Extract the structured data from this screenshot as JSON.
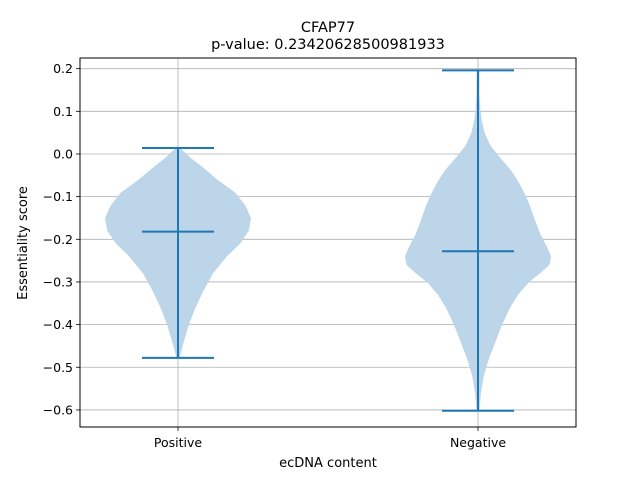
{
  "chart_data": {
    "type": "violin",
    "title": "CFAP77",
    "subtitle": "p-value: 0.23420628500981933",
    "xlabel": "ecDNA content",
    "ylabel": "Essentiality score",
    "ylim": [
      -0.64,
      0.225
    ],
    "yticks": [
      -0.6,
      -0.5,
      -0.4,
      -0.3,
      -0.2,
      -0.1,
      0.0,
      0.1,
      0.2
    ],
    "ytick_labels": [
      "−0.6",
      "−0.5",
      "−0.4",
      "−0.3",
      "−0.2",
      "−0.1",
      "0.0",
      "0.1",
      "0.2"
    ],
    "grid": true,
    "categories": [
      "Positive",
      "Negative"
    ],
    "violins": [
      {
        "category": "Positive",
        "min": -0.478,
        "median": -0.182,
        "max": 0.014,
        "density": [
          [
            0.014,
            0.03
          ],
          [
            -0.01,
            0.18
          ],
          [
            -0.03,
            0.33
          ],
          [
            -0.06,
            0.54
          ],
          [
            -0.09,
            0.78
          ],
          [
            -0.12,
            0.92
          ],
          [
            -0.15,
            1.0
          ],
          [
            -0.18,
            0.97
          ],
          [
            -0.21,
            0.85
          ],
          [
            -0.24,
            0.67
          ],
          [
            -0.28,
            0.48
          ],
          [
            -0.32,
            0.35
          ],
          [
            -0.36,
            0.24
          ],
          [
            -0.4,
            0.15
          ],
          [
            -0.44,
            0.08
          ],
          [
            -0.478,
            0.02
          ]
        ]
      },
      {
        "category": "Negative",
        "min": -0.602,
        "median": -0.228,
        "max": 0.196,
        "density": [
          [
            0.196,
            0.02
          ],
          [
            0.17,
            0.02
          ],
          [
            0.14,
            0.02
          ],
          [
            0.11,
            0.03
          ],
          [
            0.08,
            0.05
          ],
          [
            0.05,
            0.09
          ],
          [
            0.02,
            0.17
          ],
          [
            -0.01,
            0.31
          ],
          [
            -0.04,
            0.46
          ],
          [
            -0.07,
            0.57
          ],
          [
            -0.1,
            0.66
          ],
          [
            -0.13,
            0.73
          ],
          [
            -0.16,
            0.79
          ],
          [
            -0.19,
            0.86
          ],
          [
            -0.22,
            0.95
          ],
          [
            -0.24,
            1.0
          ],
          [
            -0.26,
            0.98
          ],
          [
            -0.28,
            0.85
          ],
          [
            -0.3,
            0.7
          ],
          [
            -0.33,
            0.55
          ],
          [
            -0.36,
            0.44
          ],
          [
            -0.4,
            0.33
          ],
          [
            -0.44,
            0.24
          ],
          [
            -0.48,
            0.15
          ],
          [
            -0.52,
            0.08
          ],
          [
            -0.56,
            0.04
          ],
          [
            -0.602,
            0.02
          ]
        ]
      }
    ],
    "colors": {
      "body": "#bcd5e8",
      "line": "#1f77b4",
      "grid": "#b0b0b0"
    }
  }
}
